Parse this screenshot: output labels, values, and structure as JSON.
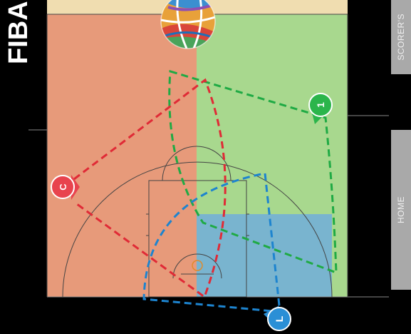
{
  "logo": {
    "text": "FIBA",
    "icon": "fiba-basketball-logo"
  },
  "side_tabs": [
    {
      "label": "SCORER'S"
    },
    {
      "label": "HOME"
    }
  ],
  "players": [
    {
      "label": "1",
      "color": "#2bb54b",
      "line_color": "#1faa44"
    },
    {
      "label": "C",
      "color": "#e8434e",
      "line_color": "#e02a36"
    },
    {
      "label": "L",
      "color": "#2a8fd6",
      "line_color": "#1d84cf"
    }
  ],
  "zones": {
    "left_color": "#e79a7a",
    "right_color": "#a8d88e",
    "paint_color": "#79b4cf",
    "baseline_color": "#f0ddb0"
  }
}
